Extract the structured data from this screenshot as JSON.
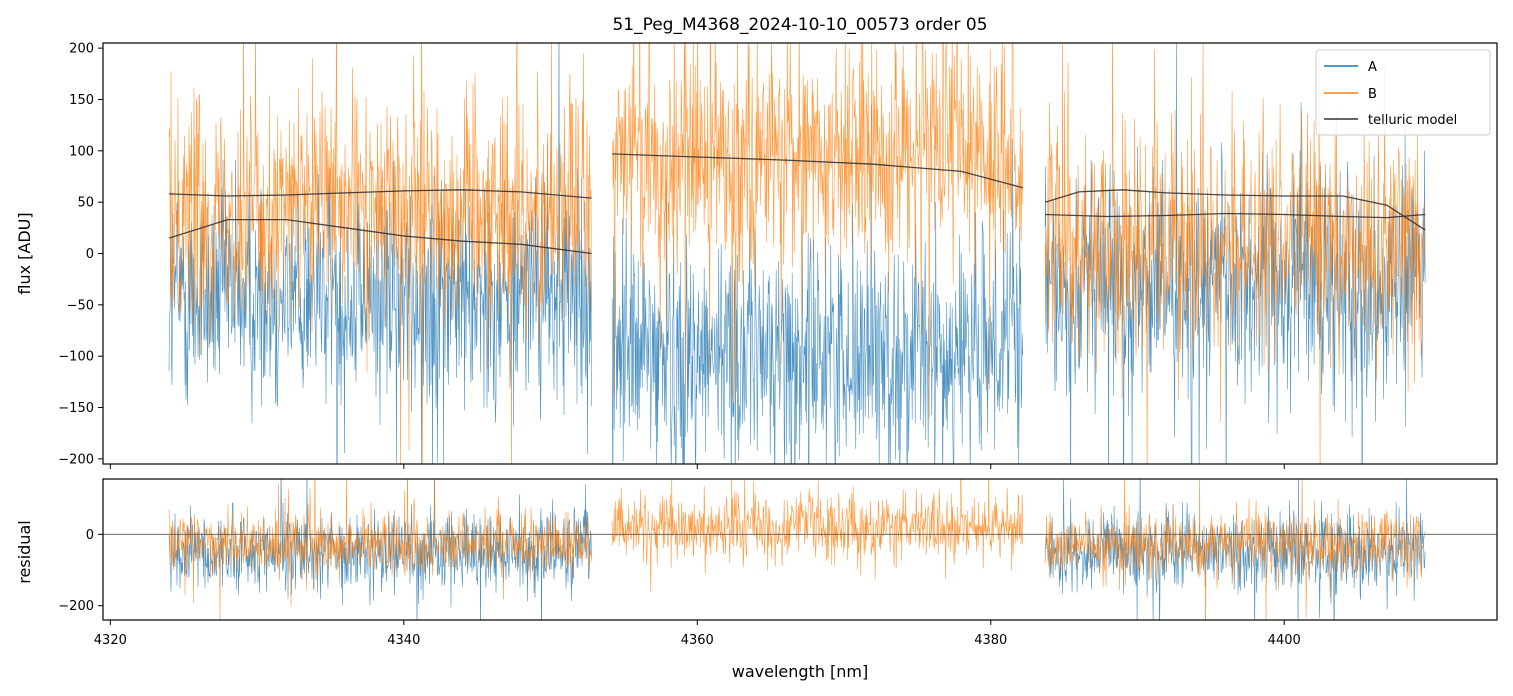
{
  "chart_data": {
    "type": "line",
    "title": "51_Peg_M4368_2024-10-10_00573  order 05",
    "xlabel": "wavelength [nm]",
    "xlim": [
      4319.5,
      4414.5
    ],
    "xticks": [
      4320,
      4340,
      4360,
      4380,
      4400
    ],
    "colors": {
      "A": "#1f77b4",
      "B": "#ff7f0e",
      "model": "#333333",
      "zero": "#555555"
    },
    "segments": [
      {
        "x_start": 4324.0,
        "x_end": 4352.8
      },
      {
        "x_start": 4354.2,
        "x_end": 4382.2
      },
      {
        "x_start": 4383.7,
        "x_end": 4409.6
      }
    ],
    "panels": [
      {
        "name": "flux",
        "ylabel": "flux [ADU]",
        "ylim": [
          -205,
          205
        ],
        "yticks": [
          -200,
          -150,
          -100,
          -50,
          0,
          50,
          100,
          150,
          200
        ],
        "series": [
          {
            "name": "A",
            "segment_means": [
              -40,
              -95,
              -30
            ],
            "noise": 55
          },
          {
            "name": "B",
            "segment_means": [
              45,
              95,
              10
            ],
            "noise": 55
          }
        ],
        "telluric_model": {
          "name": "telluric model",
          "A": [
            {
              "x": [
                4324,
                4328,
                4332,
                4336,
                4340,
                4344,
                4348,
                4352.8
              ],
              "y": [
                15,
                33,
                33,
                25,
                17,
                12,
                9,
                0
              ]
            },
            {
              "x": [
                4354.2,
                4360,
                4366,
                4372,
                4378,
                4382.2
              ],
              "y": [
                97,
                94,
                91,
                87,
                80,
                64
              ]
            },
            {
              "x": [
                4383.7,
                4388,
                4392,
                4396,
                4400,
                4404,
                4407,
                4409.6
              ],
              "y": [
                38,
                36,
                37,
                39,
                38,
                36,
                35,
                38
              ]
            }
          ],
          "B": [
            {
              "x": [
                4324,
                4328,
                4332,
                4336,
                4340,
                4344,
                4348,
                4352.8
              ],
              "y": [
                58,
                56,
                57,
                59,
                61,
                62,
                60,
                54
              ]
            },
            {
              "x": [
                4383.7,
                4386,
                4389,
                4392,
                4396,
                4400,
                4404,
                4407,
                4409.6
              ],
              "y": [
                50,
                60,
                62,
                59,
                57,
                56,
                56,
                47,
                23
              ]
            }
          ]
        }
      },
      {
        "name": "residual",
        "ylabel": "residual",
        "ylim": [
          -240,
          155
        ],
        "yticks": [
          -200,
          0
        ],
        "series": [
          {
            "name": "A",
            "segment_means": [
              -45,
              null,
              -50
            ],
            "noise": 55
          },
          {
            "name": "B",
            "segment_means": [
              -25,
              20,
              -30
            ],
            "noise": 45
          }
        ]
      }
    ],
    "legend": {
      "position": "upper right",
      "entries": [
        "A",
        "B",
        "telluric model"
      ]
    }
  }
}
